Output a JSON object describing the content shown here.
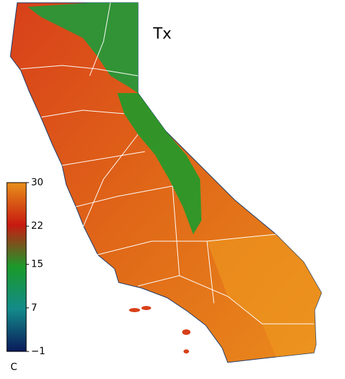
{
  "map": {
    "title": "Tx",
    "colorbar": {
      "label": "C",
      "range": [
        -1,
        30
      ],
      "ticks": [
        30,
        22,
        15,
        7,
        {
          "value": -1,
          "label": "−1"
        }
      ],
      "colors": [
        "#0a1a5a",
        "#138a8a",
        "#1a9a2a",
        "#c81a10",
        "#e8901a"
      ]
    }
  }
}
